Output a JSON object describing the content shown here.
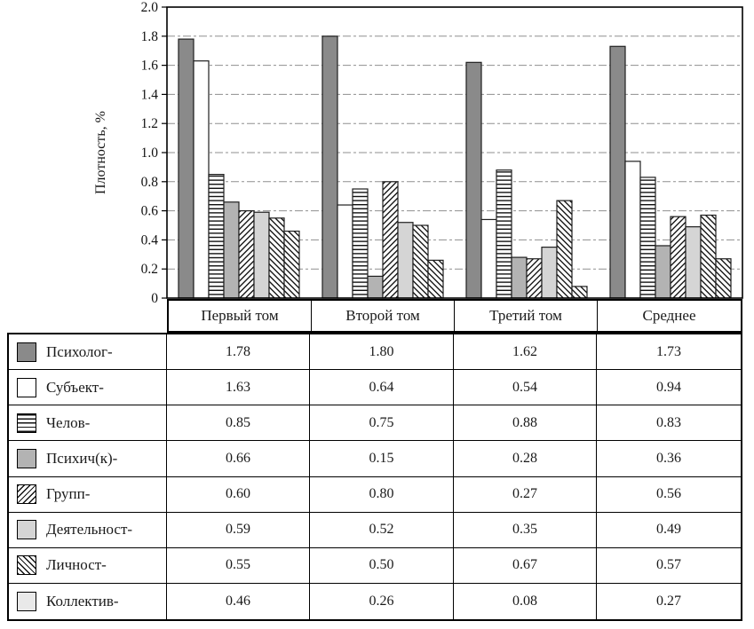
{
  "chart_data": {
    "type": "bar",
    "title": "",
    "ylabel": "Плотность, %",
    "xlabel": "",
    "ylim": [
      0,
      2.0
    ],
    "ytick_step": 0.2,
    "grid": "dashed horizontal lines at every 0.2",
    "legend_position": "table rows below chart",
    "categories": [
      "Первый том",
      "Второй том",
      "Третий том",
      "Среднее"
    ],
    "series": [
      {
        "name": "Психолог-",
        "fill": {
          "type": "solid",
          "color": "#8a8a8a"
        },
        "values": [
          1.78,
          1.8,
          1.62,
          1.73
        ]
      },
      {
        "name": "Субъект-",
        "fill": {
          "type": "solid",
          "color": "#ffffff"
        },
        "values": [
          1.63,
          0.64,
          0.54,
          0.94
        ]
      },
      {
        "name": "Челов-",
        "fill": {
          "type": "hatch-horizontal"
        },
        "values": [
          0.85,
          0.75,
          0.88,
          0.83
        ]
      },
      {
        "name": "Психич(к)-",
        "fill": {
          "type": "solid",
          "color": "#b3b3b3"
        },
        "values": [
          0.66,
          0.15,
          0.28,
          0.36
        ]
      },
      {
        "name": "Групп-",
        "fill": {
          "type": "hatch-diagonal-up"
        },
        "values": [
          0.6,
          0.8,
          0.27,
          0.56
        ]
      },
      {
        "name": "Деятельност-",
        "fill": {
          "type": "solid",
          "color": "#d5d5d5"
        },
        "values": [
          0.59,
          0.52,
          0.35,
          0.49
        ]
      },
      {
        "name": "Личност-",
        "fill": {
          "type": "hatch-diagonal-down"
        },
        "values": [
          0.55,
          0.5,
          0.67,
          0.57
        ]
      },
      {
        "name": "Коллектив-",
        "fill": {
          "type": "hatch-diagonal-down-light"
        },
        "values": [
          0.46,
          0.26,
          0.08,
          0.27
        ]
      }
    ],
    "colors": {
      "bar_outline": "#1f1f1f",
      "gridline": "#8f8f8f",
      "axis": "#000000"
    }
  },
  "table": {
    "columns": [
      "Первый том",
      "Второй том",
      "Третий том",
      "Среднее"
    ],
    "rows": [
      {
        "label": "Психолог-",
        "values": [
          "1.78",
          "1.80",
          "1.62",
          "1.73"
        ]
      },
      {
        "label": "Субъект-",
        "values": [
          "1.63",
          "0.64",
          "0.54",
          "0.94"
        ]
      },
      {
        "label": "Челов-",
        "values": [
          "0.85",
          "0.75",
          "0.88",
          "0.83"
        ]
      },
      {
        "label": "Психич(к)-",
        "values": [
          "0.66",
          "0.15",
          "0.28",
          "0.36"
        ]
      },
      {
        "label": "Групп-",
        "values": [
          "0.60",
          "0.80",
          "0.27",
          "0.56"
        ]
      },
      {
        "label": "Деятельност-",
        "values": [
          "0.59",
          "0.52",
          "0.35",
          "0.49"
        ]
      },
      {
        "label": "Личност-",
        "values": [
          "0.55",
          "0.50",
          "0.67",
          "0.57"
        ]
      },
      {
        "label": "Коллектив-",
        "values": [
          "0.46",
          "0.26",
          "0.08",
          "0.27"
        ]
      }
    ]
  }
}
